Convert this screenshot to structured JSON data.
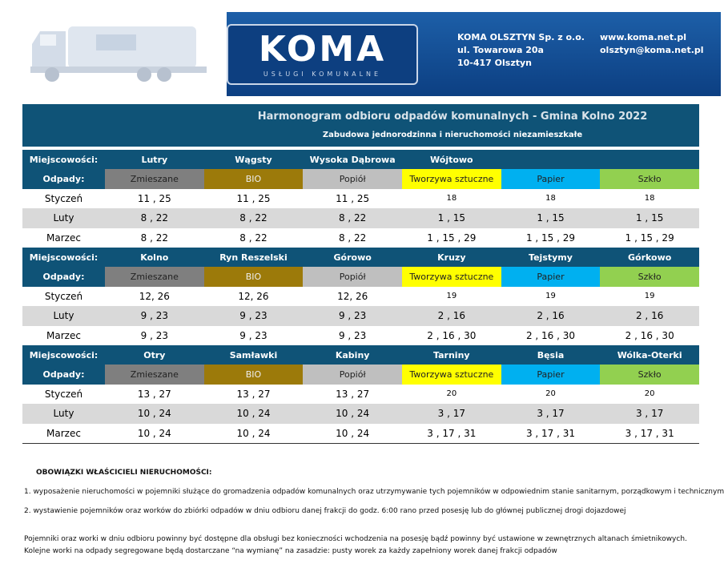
{
  "header": {
    "logo": "KOMA",
    "logo_sub": "USŁUGI KOMUNALNE",
    "company": [
      "KOMA OLSZTYN Sp. z o.o.",
      "ul. Towarowa 20a",
      "10-417 Olsztyn"
    ],
    "contact": [
      "www.koma.net.pl",
      "olsztyn@koma.net.pl"
    ]
  },
  "title": "Harmonogram odbioru odpadów komunalnych - Gmina Kolno 2022",
  "subtitle": "Zabudowa jednorodzinna i nieruchomości niezamieszkałe",
  "blocks": [
    {
      "label": "Miejscowości:",
      "towns": [
        "Lutry",
        "Wągsty",
        "Wysoka Dąbrowa",
        "Wójtowo"
      ],
      "waste_label": "Odpady:",
      "waste": [
        "Zmieszane",
        "BIO",
        "Popiół",
        "Tworzywa sztuczne",
        "Papier",
        "Szkło"
      ],
      "rows": [
        {
          "month": "Styczeń",
          "dates": [
            "11 , 25",
            "11 , 25",
            "11 , 25",
            "18",
            "18",
            "18"
          ]
        },
        {
          "month": "Luty",
          "dates": [
            "8 , 22",
            "8 , 22",
            "8 , 22",
            "1 , 15",
            "1 , 15",
            "1 , 15"
          ]
        },
        {
          "month": "Marzec",
          "dates": [
            "8 , 22",
            "8 , 22",
            "8 , 22",
            "1 , 15 , 29",
            "1 , 15 , 29",
            "1 , 15 , 29"
          ]
        }
      ]
    },
    {
      "label": "Miejscowości:",
      "towns": [
        "Kolno",
        "Ryn Reszelski",
        "Górowo",
        "Kruzy",
        "Tejstymy",
        "Górkowo"
      ],
      "waste_label": "Odpady:",
      "waste": [
        "Zmieszane",
        "BIO",
        "Popiół",
        "Tworzywa sztuczne",
        "Papier",
        "Szkło"
      ],
      "rows": [
        {
          "month": "Styczeń",
          "dates": [
            "12, 26",
            "12, 26",
            "12, 26",
            "19",
            "19",
            "19"
          ]
        },
        {
          "month": "Luty",
          "dates": [
            "9 , 23",
            "9 , 23",
            "9 , 23",
            "2 , 16",
            "2 , 16",
            "2 , 16"
          ]
        },
        {
          "month": "Marzec",
          "dates": [
            "9 , 23",
            "9 , 23",
            "9 , 23",
            "2 , 16 , 30",
            "2 , 16 , 30",
            "2 , 16 , 30"
          ]
        }
      ]
    },
    {
      "label": "Miejscowości:",
      "towns": [
        "Otry",
        "Samławki",
        "Kabiny",
        "Tarniny",
        "Bęsia",
        "Wólka-Oterki"
      ],
      "waste_label": "Odpady:",
      "waste": [
        "Zmieszane",
        "BIO",
        "Popiół",
        "Tworzywa sztuczne",
        "Papier",
        "Szkło"
      ],
      "rows": [
        {
          "month": "Styczeń",
          "dates": [
            "13 , 27",
            "13 , 27",
            "13 , 27",
            "20",
            "20",
            "20"
          ]
        },
        {
          "month": "Luty",
          "dates": [
            "10 , 24",
            "10 , 24",
            "10 , 24",
            "3 , 17",
            "3 , 17",
            "3 , 17"
          ]
        },
        {
          "month": "Marzec",
          "dates": [
            "10 , 24",
            "10 , 24",
            "10 , 24",
            "3 , 17 , 31",
            "3 , 17 , 31",
            "3 , 17 , 31"
          ]
        }
      ]
    }
  ],
  "notes": {
    "heading": "OBOWIĄZKI WŁAŚCICIELI NIERUCHOMOŚCI:",
    "items": [
      "1. wyposażenie nieruchomości w pojemniki służące do gromadzenia odpadów komunalnych oraz utrzymywanie tych pojemników w odpowiednim stanie sanitarnym, porządkowym i  technicznym",
      "2. wystawienie pojemników oraz worków do zbiórki odpadów w dniu odbioru danej frakcji do godz. 6:00 rano przed posesję lub do głównej publicznej drogi dojazdowej"
    ],
    "footer": [
      "Pojemniki oraz worki w dniu odbioru powinny być dostępne dla obsługi bez konieczności wchodzenia na posesję bądź powinny być ustawione w zewnętrznych altanach śmietnikowych.",
      "Kolejne worki na odpady segregowane będą dostarczane “na wymianę” na zasadzie: pusty worek za każdy zapełniony worek danej frakcji odpadów"
    ]
  }
}
